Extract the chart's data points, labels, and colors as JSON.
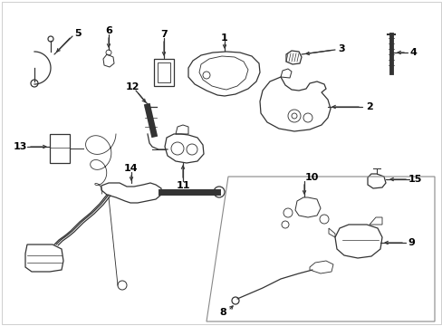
{
  "bg_color": "#ffffff",
  "line_color": "#333333",
  "text_color": "#000000",
  "fig_width": 4.89,
  "fig_height": 3.6,
  "dpi": 100,
  "border_color": "#cccccc",
  "panel_color": "#999999"
}
